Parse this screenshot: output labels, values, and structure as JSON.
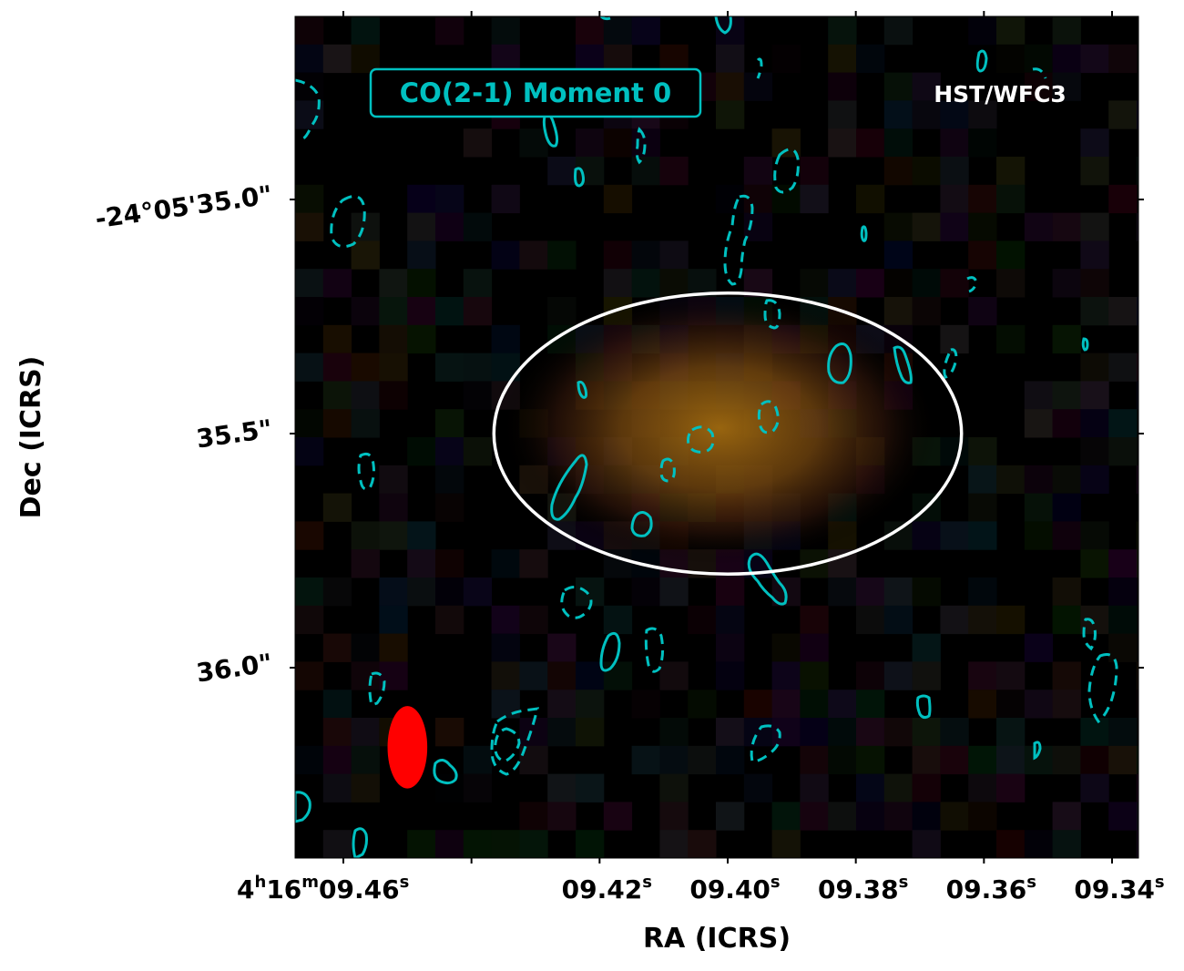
{
  "chart_data": {
    "type": "heatmap",
    "title": "CO(2-1) Moment 0",
    "instrument_label": "HST/WFC3",
    "xlabel": "RA (ICRS)",
    "ylabel": "Dec (ICRS)",
    "xlim": [
      9.468,
      9.336
    ],
    "ylim": [
      36.2,
      34.8
    ],
    "x_ticks": [
      {
        "value": 9.46,
        "label_main": "4",
        "label_sup1": "h",
        "label_mid": "16",
        "label_sup2": "m",
        "label_tail": "09.46",
        "label_sup3": "s",
        "labeled": true
      },
      {
        "value": 9.44,
        "labeled": false
      },
      {
        "value": 9.42,
        "label_tail": "09.42",
        "label_sup3": "s",
        "labeled": true
      },
      {
        "value": 9.4,
        "label_tail": "09.40",
        "label_sup3": "s",
        "labeled": true
      },
      {
        "value": 9.38,
        "label_tail": "09.38",
        "label_sup3": "s",
        "labeled": true
      },
      {
        "value": 9.36,
        "label_tail": "09.36",
        "label_sup3": "s",
        "labeled": true
      },
      {
        "value": 9.34,
        "label_tail": "09.34",
        "label_sup3": "s",
        "labeled": true
      }
    ],
    "y_ticks": [
      {
        "value": 35.0,
        "label": "-24°05'35.0\""
      },
      {
        "value": 35.5,
        "label": "35.5\""
      },
      {
        "value": 36.0,
        "label": "36.0\""
      }
    ],
    "aperture": {
      "ra_center": 9.4,
      "dec_center": 35.5,
      "ra_semi": 0.0365,
      "dec_semi": 0.3,
      "color": "#ffffff"
    },
    "beam": {
      "ra_center": 9.45,
      "dec_center": 36.17,
      "ra_semi": 0.0031,
      "dec_semi": 0.088,
      "color": "#ff0000"
    },
    "contour_color": "#00c0c0",
    "background_color": "#000000",
    "grid": false
  }
}
